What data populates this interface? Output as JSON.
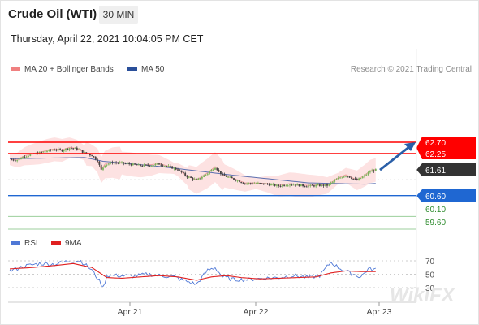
{
  "header": {
    "title": "Crude Oil (WTI)",
    "timeframe": "30 MIN",
    "datetime": "Thursday, April 22, 2021 10:04:05 PM CET"
  },
  "credit": "Research © 2021 Trading Central",
  "watermark": "WikiFX",
  "colors": {
    "resistance": "#ff0000",
    "support": "#1f67d2",
    "target": "#2e8b2e",
    "ma20": "#f0a0a0",
    "bands": "#fde2e2",
    "ma50": "#5b6fb0",
    "rsi": "#4f78d6",
    "rsi_ma": "#e02020",
    "arrow": "#2a5fa8",
    "up": "#7bb35a",
    "down": "#444444",
    "price_tag": "#333333"
  },
  "chart_data": [
    {
      "type": "candlestick",
      "legend": [
        {
          "label": "MA 20 + Bollinger Bands",
          "color": "#f08080"
        },
        {
          "label": "MA 50",
          "color": "#2a4f9a"
        }
      ],
      "x_ticks": [
        "Apr 21",
        "Apr 22",
        "Apr 23"
      ],
      "ylim": [
        59.0,
        63.3
      ],
      "close_path": [
        [
          0,
          62.02
        ],
        [
          4,
          62.0
        ],
        [
          8,
          62.15
        ],
        [
          12,
          62.22
        ],
        [
          16,
          62.28
        ],
        [
          20,
          62.36
        ],
        [
          24,
          62.42
        ],
        [
          28,
          62.38
        ],
        [
          32,
          62.48
        ],
        [
          36,
          62.44
        ],
        [
          40,
          62.28
        ],
        [
          44,
          62.18
        ],
        [
          47,
          61.98
        ],
        [
          49,
          61.6
        ],
        [
          51,
          61.82
        ],
        [
          55,
          61.9
        ],
        [
          60,
          61.88
        ],
        [
          66,
          61.82
        ],
        [
          70,
          61.78
        ],
        [
          76,
          61.8
        ],
        [
          80,
          61.84
        ],
        [
          86,
          61.72
        ],
        [
          90,
          61.62
        ],
        [
          95,
          61.35
        ],
        [
          100,
          61.2
        ],
        [
          106,
          61.48
        ],
        [
          110,
          61.72
        ],
        [
          114,
          61.4
        ],
        [
          120,
          61.25
        ],
        [
          126,
          61.08
        ],
        [
          132,
          61.08
        ],
        [
          138,
          61.05
        ],
        [
          144,
          60.98
        ],
        [
          150,
          61.05
        ],
        [
          156,
          61.0
        ],
        [
          160,
          60.98
        ],
        [
          166,
          61.0
        ],
        [
          170,
          61.0
        ],
        [
          176,
          61.28
        ],
        [
          180,
          61.4
        ],
        [
          186,
          61.2
        ],
        [
          190,
          61.38
        ],
        [
          193,
          61.55
        ],
        [
          196,
          61.61
        ]
      ],
      "ma50_path": [
        [
          0,
          62.05
        ],
        [
          40,
          62.1
        ],
        [
          50,
          61.95
        ],
        [
          80,
          61.75
        ],
        [
          120,
          61.4
        ],
        [
          160,
          61.1
        ],
        [
          190,
          61.05
        ],
        [
          196,
          61.08
        ]
      ],
      "resistance": [
        {
          "label": "62.70",
          "value": 62.7
        },
        {
          "label": "62.25",
          "value": 62.25
        }
      ],
      "last_price": {
        "label": "61.61",
        "value": 61.61
      },
      "pivot": {
        "label": "60.60",
        "value": 60.6
      },
      "targets": [
        {
          "label": "60.10",
          "value": 60.1
        },
        {
          "label": "59.60",
          "value": 59.6
        }
      ],
      "arrow": {
        "from_value": 61.61,
        "to_value": 62.7
      }
    },
    {
      "type": "line",
      "name": "RSI",
      "legend": [
        {
          "label": "RSI",
          "color": "#4f78d6"
        },
        {
          "label": "9MA",
          "color": "#e02020"
        }
      ],
      "y_ticks": [
        "70",
        "50",
        "30"
      ],
      "ylim": [
        15,
        80
      ],
      "series": [
        {
          "name": "RSI",
          "values": [
            [
              0,
              55
            ],
            [
              8,
              62
            ],
            [
              16,
              66
            ],
            [
              24,
              65
            ],
            [
              32,
              70
            ],
            [
              38,
              70
            ],
            [
              44,
              56
            ],
            [
              48,
              40
            ],
            [
              50,
              30
            ],
            [
              52,
              48
            ],
            [
              58,
              48
            ],
            [
              66,
              47
            ],
            [
              74,
              50
            ],
            [
              80,
              48
            ],
            [
              88,
              46
            ],
            [
              94,
              40
            ],
            [
              100,
              35
            ],
            [
              106,
              56
            ],
            [
              110,
              60
            ],
            [
              114,
              46
            ],
            [
              120,
              42
            ],
            [
              128,
              42
            ],
            [
              136,
              44
            ],
            [
              144,
              45
            ],
            [
              152,
              48
            ],
            [
              160,
              45
            ],
            [
              166,
              48
            ],
            [
              172,
              68
            ],
            [
              176,
              60
            ],
            [
              182,
              52
            ],
            [
              188,
              46
            ],
            [
              192,
              58
            ],
            [
              196,
              57
            ]
          ]
        },
        {
          "name": "9MA",
          "values": [
            [
              0,
              58
            ],
            [
              12,
              60
            ],
            [
              24,
              63
            ],
            [
              34,
              66
            ],
            [
              44,
              60
            ],
            [
              52,
              45
            ],
            [
              60,
              44
            ],
            [
              70,
              46
            ],
            [
              80,
              48
            ],
            [
              90,
              46
            ],
            [
              100,
              41
            ],
            [
              108,
              46
            ],
            [
              116,
              48
            ],
            [
              124,
              45
            ],
            [
              134,
              43
            ],
            [
              144,
              44
            ],
            [
              154,
              45
            ],
            [
              164,
              46
            ],
            [
              172,
              52
            ],
            [
              180,
              55
            ],
            [
              188,
              54
            ],
            [
              196,
              54
            ]
          ]
        }
      ]
    }
  ]
}
